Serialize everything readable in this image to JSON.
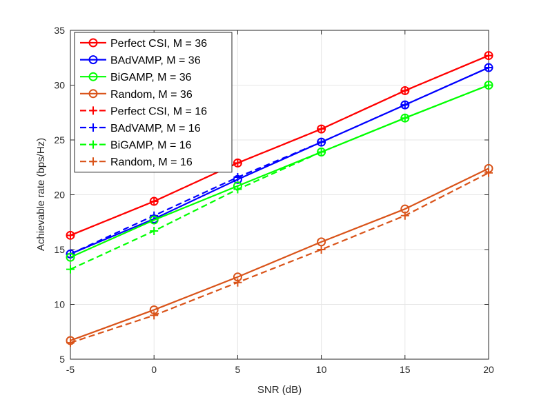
{
  "chart_data": {
    "type": "line",
    "xlabel": "SNR (dB)",
    "ylabel": "Achievable rate (bps/Hz)",
    "xlim": [
      -5,
      20
    ],
    "ylim": [
      5,
      35
    ],
    "xticks": [
      -5,
      0,
      5,
      10,
      15,
      20
    ],
    "yticks": [
      5,
      10,
      15,
      20,
      25,
      30,
      35
    ],
    "grid": true,
    "legend_position": "top-left",
    "x": [
      -5,
      0,
      5,
      10,
      15,
      20
    ],
    "series": [
      {
        "name": "Perfect CSI, M = 36",
        "color": "#ff0000",
        "style": "solid",
        "marker": "circle",
        "values": [
          16.3,
          19.4,
          22.9,
          26.0,
          29.5,
          32.7
        ]
      },
      {
        "name": "BAdVAMP, M = 36",
        "color": "#0000ff",
        "style": "solid",
        "marker": "circle",
        "values": [
          14.6,
          17.8,
          21.4,
          24.8,
          28.2,
          31.6
        ]
      },
      {
        "name": "BiGAMP, M = 36",
        "color": "#00ff00",
        "style": "solid",
        "marker": "circle",
        "values": [
          14.3,
          17.7,
          20.8,
          23.9,
          27.0,
          30.0
        ]
      },
      {
        "name": "Random, M = 36",
        "color": "#d95319",
        "style": "solid",
        "marker": "circle",
        "values": [
          6.7,
          9.5,
          12.5,
          15.7,
          18.7,
          22.4
        ]
      },
      {
        "name": "Perfect CSI, M = 16",
        "color": "#ff0000",
        "style": "dashed",
        "marker": "plus",
        "values": [
          16.3,
          19.4,
          22.9,
          26.0,
          29.5,
          32.7
        ]
      },
      {
        "name": "BAdVAMP, M = 16",
        "color": "#0000ff",
        "style": "dashed",
        "marker": "plus",
        "values": [
          14.6,
          18.1,
          21.6,
          24.8,
          28.2,
          31.6
        ]
      },
      {
        "name": "BiGAMP, M = 16",
        "color": "#00ff00",
        "style": "dashed",
        "marker": "plus",
        "values": [
          13.2,
          16.7,
          20.5,
          23.9,
          27.0,
          30.0
        ]
      },
      {
        "name": "Random, M = 16",
        "color": "#d95319",
        "style": "dashed",
        "marker": "plus",
        "values": [
          6.5,
          9.0,
          12.0,
          15.0,
          18.1,
          22.0
        ]
      }
    ]
  }
}
